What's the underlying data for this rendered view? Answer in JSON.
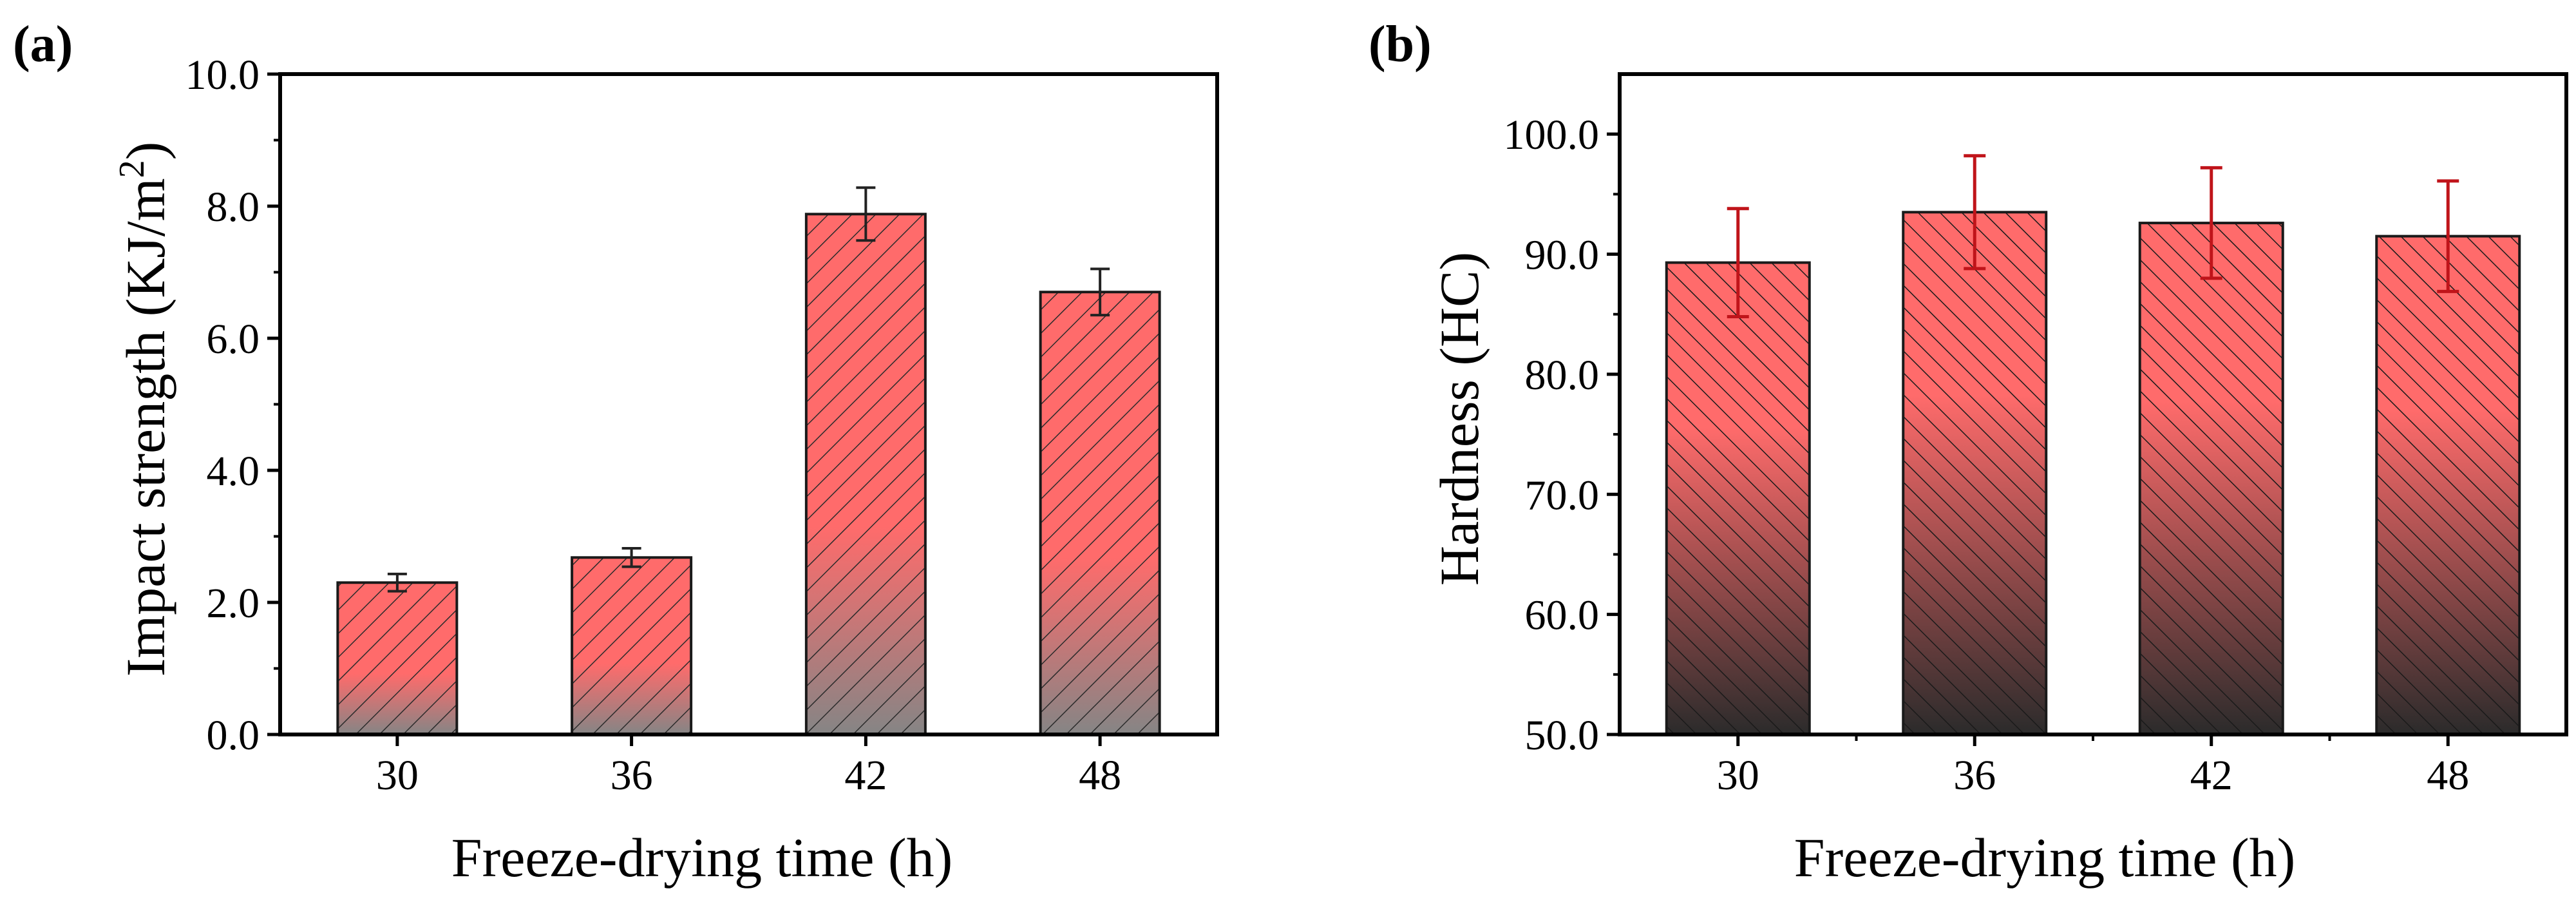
{
  "chart_data": [
    {
      "type": "bar",
      "panel_label": "(a)",
      "title": "",
      "xlabel": "Freeze-drying time (h)",
      "ylabel_main": "Impact strength (KJ/m",
      "ylabel_sup": "2",
      "ylabel_close": ")",
      "categories": [
        "30",
        "36",
        "42",
        "48"
      ],
      "values": [
        2.3,
        2.68,
        7.88,
        6.7
      ],
      "errors": [
        0.13,
        0.14,
        0.4,
        0.35
      ],
      "ylim": [
        0,
        10
      ],
      "yticks": [
        0,
        2,
        4,
        6,
        8,
        10
      ],
      "ytick_labels": [
        "0.0",
        "2.0",
        "4.0",
        "6.0",
        "8.0",
        "10.0"
      ],
      "colors": {
        "bar_top": "#ff6b6b",
        "bar_bottom": "#858585",
        "hatch": "#2b2b2b",
        "error": "#222222"
      }
    },
    {
      "type": "bar",
      "panel_label": "(b)",
      "title": "",
      "xlabel": "Freeze-drying time (h)",
      "ylabel_main": "Hardness (HC)",
      "categories": [
        "30",
        "36",
        "42",
        "48"
      ],
      "values": [
        89.3,
        93.5,
        92.6,
        91.5
      ],
      "errors": [
        4.5,
        4.7,
        4.6,
        4.6
      ],
      "ylim": [
        50,
        105
      ],
      "yticks": [
        50,
        60,
        70,
        80,
        90,
        100
      ],
      "ytick_labels": [
        "50.0",
        "60.0",
        "70.0",
        "80.0",
        "90.0",
        "100.0"
      ],
      "colors": {
        "bar_top": "#ff6b6b",
        "bar_bottom": "#2b2b2b",
        "hatch": "#1a1a1a",
        "error": "#c0141a"
      }
    }
  ]
}
